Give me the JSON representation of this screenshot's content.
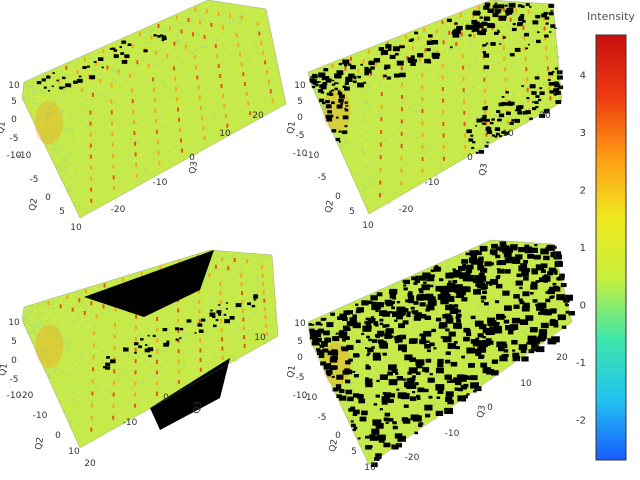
{
  "chart_data": {
    "type": "volume-3d",
    "colorbar": {
      "title": "Intensity",
      "range": [
        -2.7,
        4.7
      ],
      "ticks": [
        "4",
        "3",
        "2",
        "1",
        "0",
        "-1",
        "-2"
      ],
      "colors": [
        "#1a5cff",
        "#21c4f0",
        "#3fe6a8",
        "#c8f03c",
        "#f0e81e",
        "#ff9a14",
        "#ee3a10",
        "#c80f0f"
      ]
    },
    "panels": [
      {
        "name": "top-left",
        "position": "top-left",
        "mask_style": "full",
        "axes": {
          "q1": {
            "label": "Q1",
            "ticks": [
              "10",
              "5",
              "0",
              "-5",
              "-10"
            ]
          },
          "q2": {
            "label": "Q2",
            "ticks": [
              "-10",
              "-5",
              "0",
              "5",
              "10"
            ]
          },
          "q3": {
            "label": "Q3",
            "ticks": [
              "-20",
              "-10",
              "0",
              "10",
              "20"
            ]
          }
        }
      },
      {
        "name": "top-right",
        "position": "top-right",
        "mask_style": "speckled",
        "axes": {
          "q1": {
            "label": "Q1",
            "ticks": [
              "10",
              "5",
              "0",
              "-5",
              "-10"
            ]
          },
          "q2": {
            "label": "Q2",
            "ticks": [
              "-10",
              "-5",
              "0",
              "5",
              "10"
            ]
          },
          "q3": {
            "label": "Q3",
            "ticks": [
              "-20",
              "-10",
              "0",
              "10",
              "20"
            ]
          }
        }
      },
      {
        "name": "bottom-left",
        "position": "bottom-left",
        "mask_style": "cut",
        "axes": {
          "q1": {
            "label": "Q1",
            "ticks": [
              "10",
              "5",
              "0",
              "-5",
              "-10"
            ]
          },
          "q2": {
            "label": "Q2",
            "ticks": [
              "-20",
              "-10",
              "0",
              "10",
              "20"
            ]
          },
          "q3": {
            "label": "Q3",
            "ticks": [
              "-10",
              "0",
              "10"
            ]
          }
        }
      },
      {
        "name": "bottom-right",
        "position": "bottom-right",
        "mask_style": "sparse",
        "axes": {
          "q1": {
            "label": "Q1",
            "ticks": [
              "10",
              "5",
              "0",
              "-5",
              "-10"
            ]
          },
          "q2": {
            "label": "Q2",
            "ticks": [
              "-10",
              "-5",
              "0",
              "5",
              "10"
            ]
          },
          "q3": {
            "label": "Q3",
            "ticks": [
              "-20",
              "-10",
              "0",
              "10",
              "20"
            ]
          }
        }
      }
    ]
  }
}
